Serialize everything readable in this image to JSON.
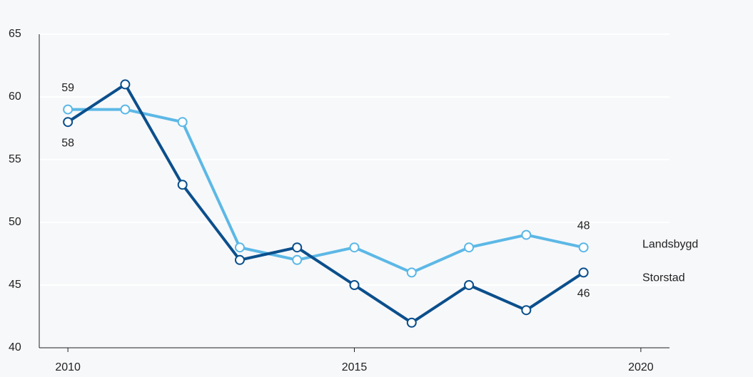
{
  "chart_data": {
    "type": "line",
    "x": [
      2010,
      2011,
      2012,
      2013,
      2014,
      2015,
      2016,
      2017,
      2018,
      2019
    ],
    "series": [
      {
        "name": "Landsbygd",
        "color": "#5cb8e6",
        "values": [
          59,
          59,
          58,
          48,
          47,
          48,
          46,
          48,
          49,
          48
        ]
      },
      {
        "name": "Storstad",
        "color": "#0b4f8c",
        "values": [
          58,
          61,
          53,
          47,
          48,
          45,
          42,
          45,
          43,
          46
        ]
      }
    ],
    "xlim": [
      2009.5,
      2020.5
    ],
    "xticks": [
      2010,
      2015,
      2020
    ],
    "ylim": [
      40,
      65
    ],
    "yticks": [
      40,
      45,
      50,
      55,
      60,
      65
    ],
    "grid": true
  }
}
